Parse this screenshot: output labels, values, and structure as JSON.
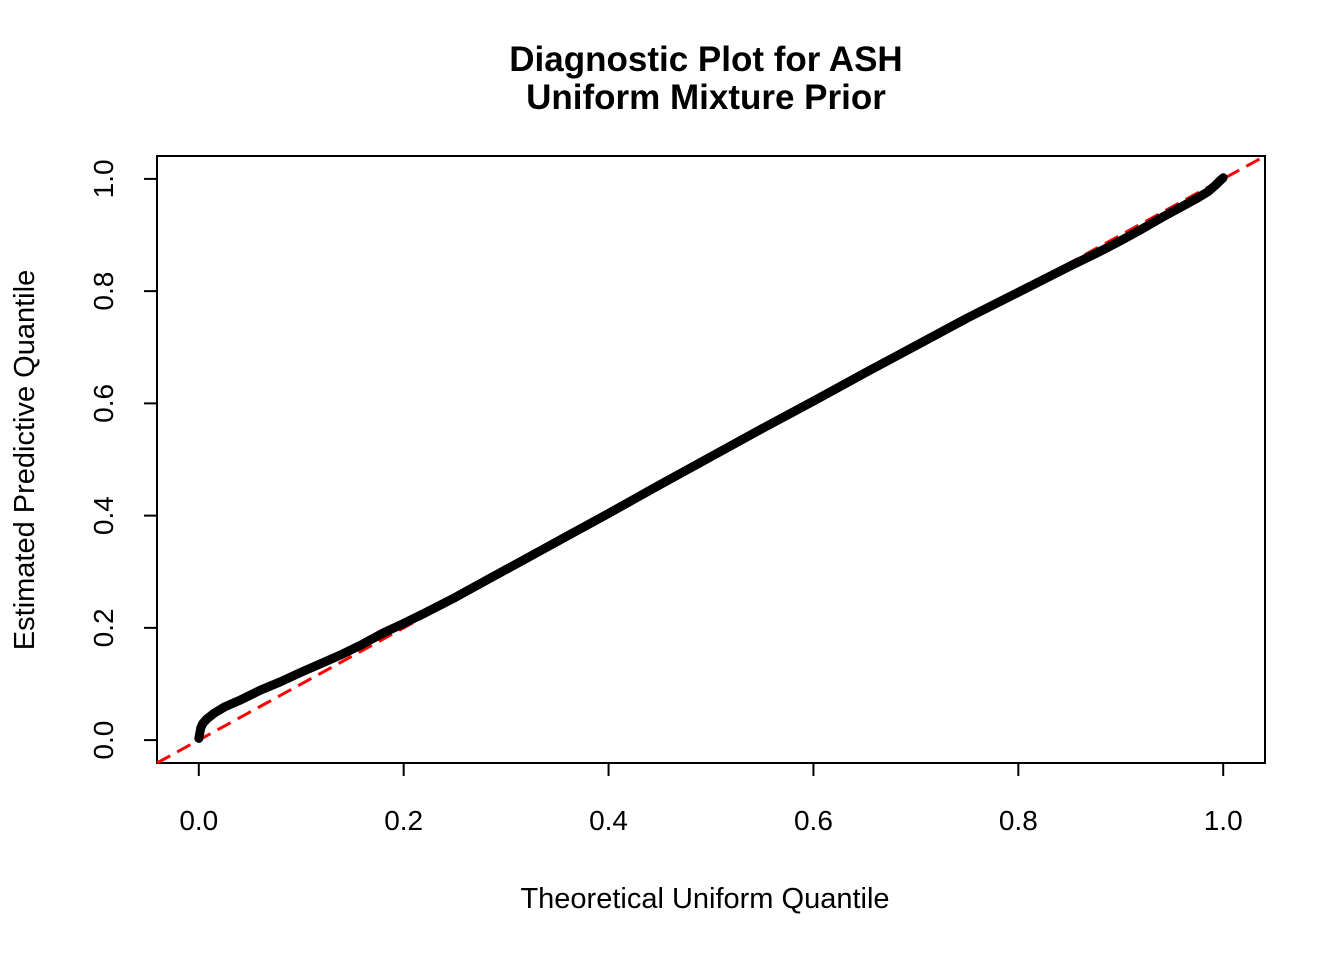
{
  "chart_data": {
    "type": "line",
    "title_line1": "Diagnostic Plot for ASH",
    "title_line2": "Uniform Mixture Prior",
    "xlabel": "Theoretical Uniform Quantile",
    "ylabel": "Estimated Predictive Quantile",
    "x_ticks": [
      0.0,
      0.2,
      0.4,
      0.6,
      0.8,
      1.0
    ],
    "x_tick_labels": [
      "0.0",
      "0.2",
      "0.4",
      "0.6",
      "0.8",
      "1.0"
    ],
    "y_ticks": [
      0.0,
      0.2,
      0.4,
      0.6,
      0.8,
      1.0
    ],
    "y_tick_labels": [
      "0.0",
      "0.2",
      "0.4",
      "0.6",
      "0.8",
      "1.0"
    ],
    "xlim": [
      0,
      1
    ],
    "ylim": [
      0,
      1
    ],
    "usr": [
      -0.0408,
      1.0408,
      -0.0408,
      1.0408
    ],
    "grid": false,
    "legend": null,
    "colors": {
      "curve": "#000000",
      "reference": "#FF0000",
      "axis": "#000000"
    },
    "reference_line": {
      "kind": "abline",
      "intercept": 0,
      "slope": 1,
      "style": "dashed",
      "color": "#FF0000"
    },
    "series": [
      {
        "name": "estimated-predictive-quantile-vs-theoretical-uniform-quantile",
        "points": [
          [
            0.0,
            0.003
          ],
          [
            0.002,
            0.022
          ],
          [
            0.004,
            0.03
          ],
          [
            0.008,
            0.038
          ],
          [
            0.015,
            0.048
          ],
          [
            0.025,
            0.059
          ],
          [
            0.04,
            0.071
          ],
          [
            0.06,
            0.089
          ],
          [
            0.08,
            0.104
          ],
          [
            0.1,
            0.121
          ],
          [
            0.12,
            0.137
          ],
          [
            0.14,
            0.153
          ],
          [
            0.16,
            0.171
          ],
          [
            0.18,
            0.191
          ],
          [
            0.2,
            0.208
          ],
          [
            0.22,
            0.226
          ],
          [
            0.25,
            0.254
          ],
          [
            0.28,
            0.284
          ],
          [
            0.32,
            0.324
          ],
          [
            0.36,
            0.364
          ],
          [
            0.4,
            0.404
          ],
          [
            0.45,
            0.455
          ],
          [
            0.5,
            0.505
          ],
          [
            0.55,
            0.555
          ],
          [
            0.6,
            0.604
          ],
          [
            0.65,
            0.654
          ],
          [
            0.7,
            0.703
          ],
          [
            0.75,
            0.752
          ],
          [
            0.8,
            0.798
          ],
          [
            0.85,
            0.844
          ],
          [
            0.88,
            0.871
          ],
          [
            0.9,
            0.89
          ],
          [
            0.92,
            0.91
          ],
          [
            0.94,
            0.931
          ],
          [
            0.96,
            0.951
          ],
          [
            0.975,
            0.966
          ],
          [
            0.985,
            0.977
          ],
          [
            0.992,
            0.988
          ],
          [
            0.997,
            0.997
          ],
          [
            1.0,
            1.002
          ]
        ]
      }
    ]
  }
}
